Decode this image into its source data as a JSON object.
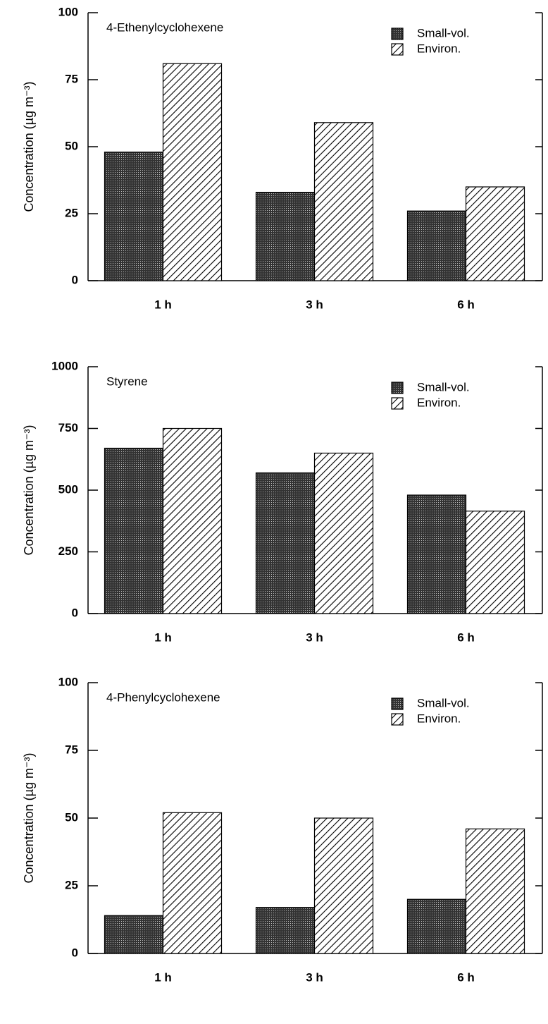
{
  "chart_data": [
    {
      "type": "bar",
      "title": "4-Ethenylcyclohexene",
      "ylabel": "Concentration (µg m⁻³)",
      "categories": [
        "1 h",
        "3 h",
        "6 h"
      ],
      "series": [
        {
          "name": "Small-vol.",
          "color": "#3a3a3a",
          "values": [
            48,
            33,
            26
          ]
        },
        {
          "name": "Environ.",
          "color": "#000000",
          "values": [
            81,
            59,
            35
          ]
        }
      ],
      "ylim": [
        0,
        100
      ],
      "yticks": [
        0,
        25,
        50,
        75,
        100
      ]
    },
    {
      "type": "bar",
      "title": "Styrene",
      "ylabel": "Concentration (µg m⁻³)",
      "categories": [
        "1 h",
        "3 h",
        "6 h"
      ],
      "series": [
        {
          "name": "Small-vol.",
          "color": "#3a3a3a",
          "values": [
            670,
            570,
            480
          ]
        },
        {
          "name": "Environ.",
          "color": "#000000",
          "values": [
            750,
            650,
            415
          ]
        }
      ],
      "ylim": [
        0,
        1000
      ],
      "yticks": [
        0,
        250,
        500,
        750,
        1000
      ]
    },
    {
      "type": "bar",
      "title": "4-Phenylcyclohexene",
      "ylabel": "Concentration (µg m⁻³)",
      "categories": [
        "1 h",
        "3 h",
        "6 h"
      ],
      "series": [
        {
          "name": "Small-vol.",
          "color": "#3a3a3a",
          "values": [
            14,
            17,
            20
          ]
        },
        {
          "name": "Environ.",
          "color": "#000000",
          "values": [
            52,
            50,
            46
          ]
        }
      ],
      "ylim": [
        0,
        100
      ],
      "yticks": [
        0,
        25,
        50,
        75,
        100
      ]
    }
  ]
}
